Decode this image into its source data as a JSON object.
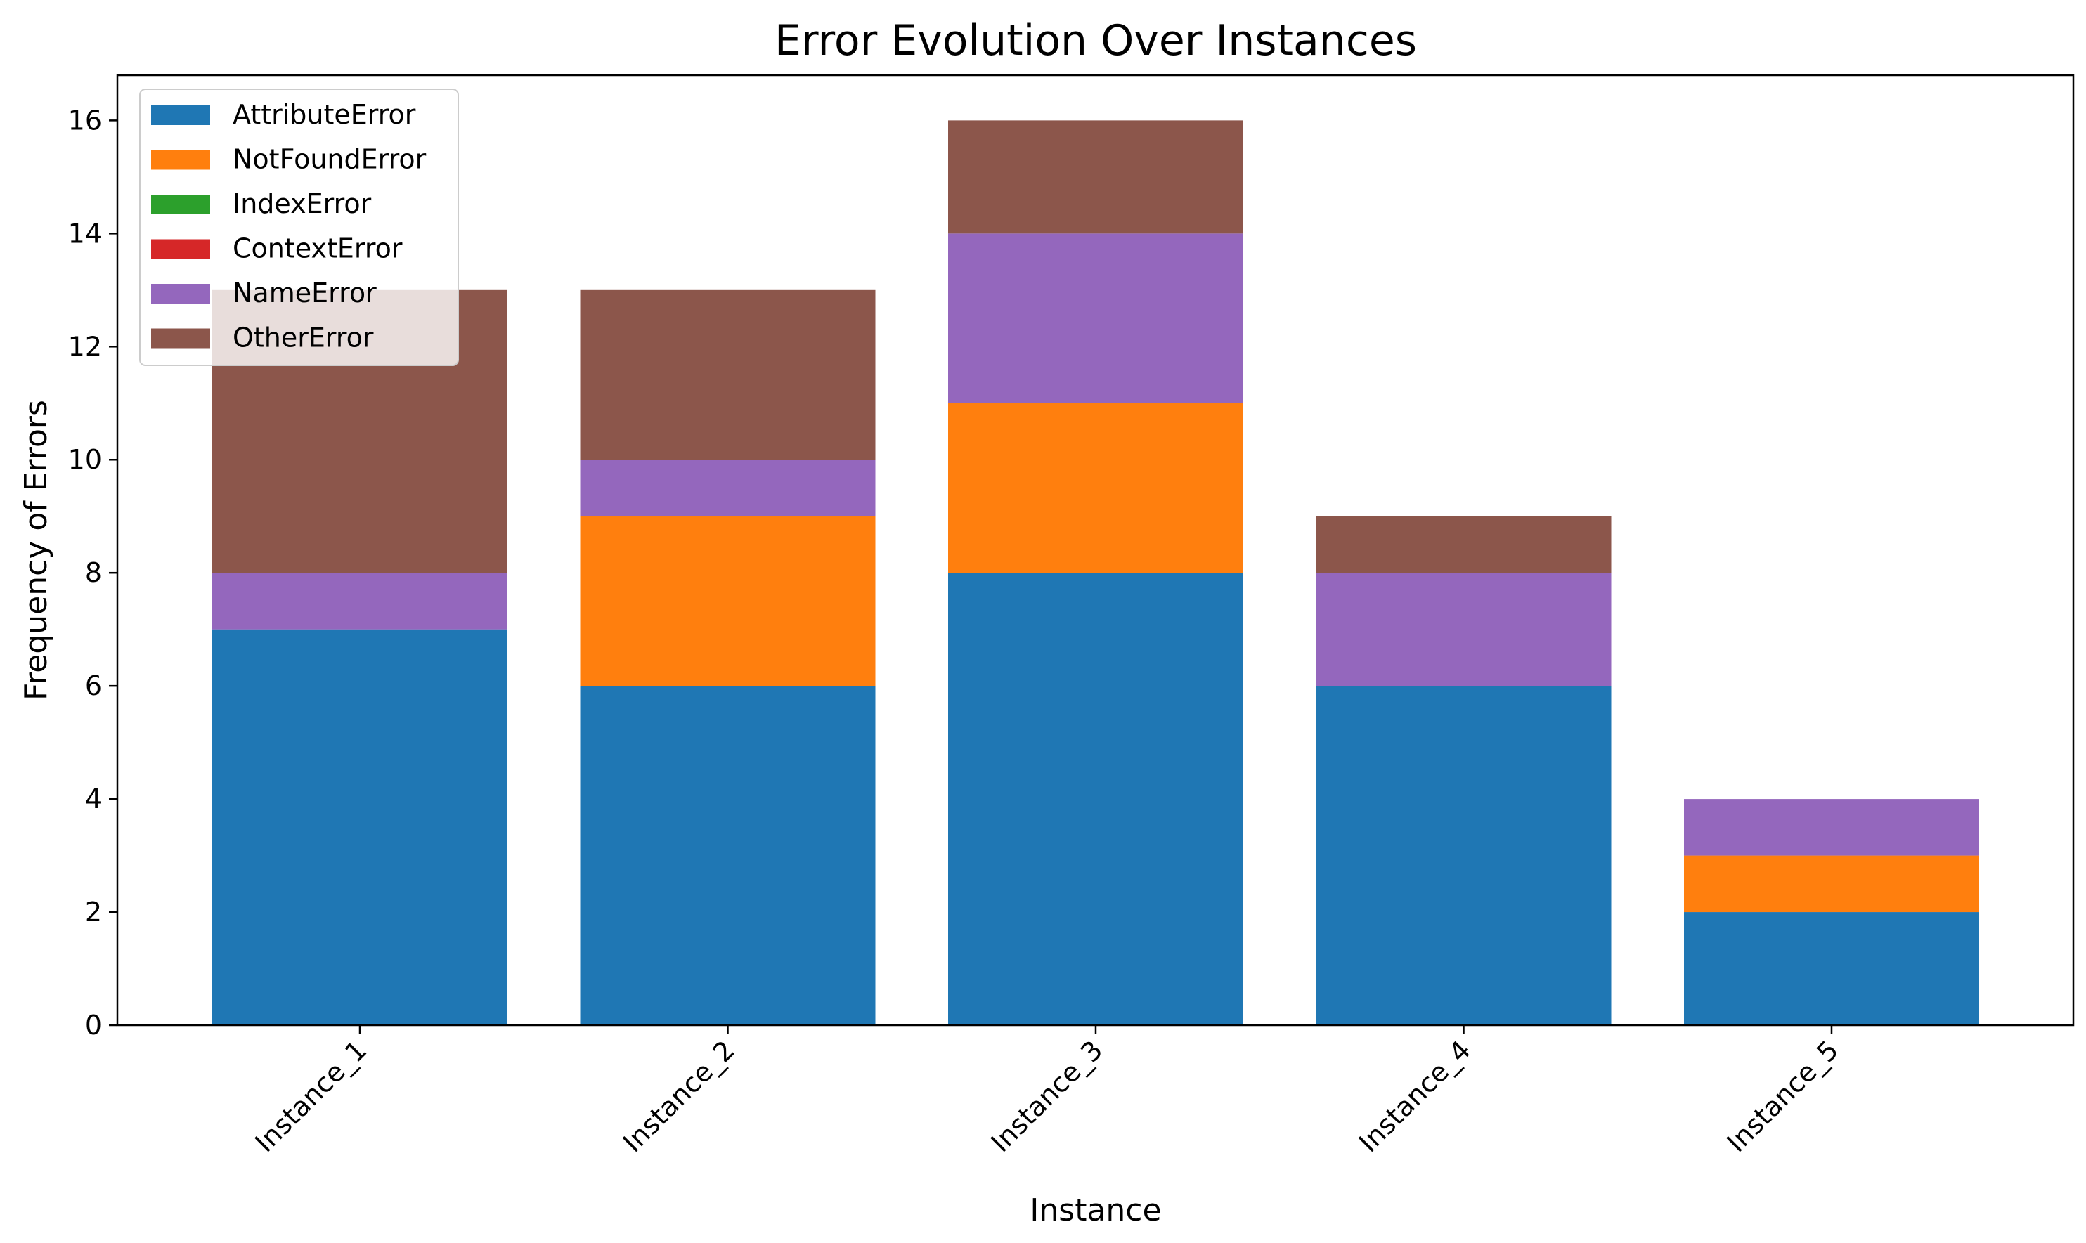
{
  "chart_data": {
    "type": "bar",
    "stacked": true,
    "title": "Error Evolution Over Instances",
    "xlabel": "Instance",
    "ylabel": "Frequency of Errors",
    "categories": [
      "Instance_1",
      "Instance_2",
      "Instance_3",
      "Instance_4",
      "Instance_5"
    ],
    "ylim": [
      0,
      16.8
    ],
    "yticks": [
      0,
      2,
      4,
      6,
      8,
      10,
      12,
      14,
      16
    ],
    "grid": false,
    "legend_position": "top-left",
    "series": [
      {
        "name": "AttributeError",
        "color": "#1f77b4",
        "values": [
          7,
          6,
          8,
          6,
          2
        ]
      },
      {
        "name": "NotFoundError",
        "color": "#ff7f0e",
        "values": [
          0,
          3,
          3,
          0,
          1
        ]
      },
      {
        "name": "IndexError",
        "color": "#2ca02c",
        "values": [
          0,
          0,
          0,
          0,
          0
        ]
      },
      {
        "name": "ContextError",
        "color": "#d62728",
        "values": [
          0,
          0,
          0,
          0,
          0
        ]
      },
      {
        "name": "NameError",
        "color": "#9467bd",
        "values": [
          1,
          1,
          3,
          2,
          1
        ]
      },
      {
        "name": "OtherError",
        "color": "#8c564b",
        "values": [
          5,
          3,
          2,
          1,
          0
        ]
      }
    ]
  }
}
